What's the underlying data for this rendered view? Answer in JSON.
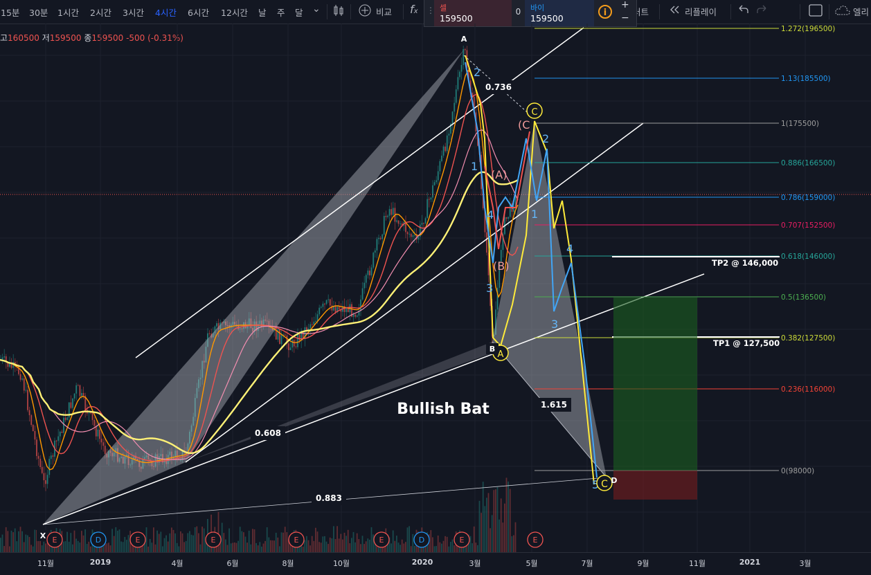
{
  "toolbar": {
    "timeframes": [
      {
        "label": "15분",
        "active": false
      },
      {
        "label": "30분",
        "active": false
      },
      {
        "label": "1시간",
        "active": false
      },
      {
        "label": "2시간",
        "active": false
      },
      {
        "label": "3시간",
        "active": false
      },
      {
        "label": "4시간",
        "active": true
      },
      {
        "label": "6시간",
        "active": false
      },
      {
        "label": "12시간",
        "active": false
      },
      {
        "label": "날",
        "active": false
      },
      {
        "label": "주",
        "active": false
      },
      {
        "label": "달",
        "active": false
      }
    ],
    "compare_label": "비교",
    "chart_label": "러트",
    "replay_label": "리플레이",
    "alert_label": "엘리"
  },
  "trade": {
    "sell_label": "셀",
    "sell_value": "159500",
    "spread": "0",
    "buy_label": "바이",
    "buy_value": "159500"
  },
  "ohlc": {
    "high_label": "고",
    "high": "160500",
    "low_label": "저",
    "low": "159500",
    "close_label": "종",
    "close": "159500",
    "change": "-500 (-0.31%)"
  },
  "chart": {
    "pattern_title": "Bullish Bat",
    "ratio_labels": {
      "r1": "0.736",
      "r2": "0.608",
      "r3": "0.883",
      "r4": "1.615"
    },
    "points": {
      "X": "X",
      "A": "A",
      "B": "B",
      "C": "C",
      "D": "D"
    },
    "tp2": "TP2 @ 146,000",
    "tp1": "TP1 @ 127,500",
    "wave_labels": {
      "w1": "1",
      "w2": "2",
      "w3": "3",
      "w4": "4",
      "w5": "5",
      "wA": "(A)",
      "wB": "(B)",
      "wC": "(C"
    },
    "circle_labels": {
      "a": "A",
      "c": "C",
      "c2": "C"
    },
    "fib_levels": [
      {
        "label": "1.272(196500)",
        "color": "#cddc39"
      },
      {
        "label": "1.13(185500)",
        "color": "#2196f3"
      },
      {
        "label": "1(175500)",
        "color": "#9e9e9e"
      },
      {
        "label": "0.886(166500)",
        "color": "#26a69a"
      },
      {
        "label": "0.786(159000)",
        "color": "#2196f3"
      },
      {
        "label": "0.707(152500)",
        "color": "#e91e63"
      },
      {
        "label": "0.618(146000)",
        "color": "#26a69a"
      },
      {
        "label": "0.5(136500)",
        "color": "#4caf50"
      },
      {
        "label": "0.382(127500)",
        "color": "#cddc39"
      },
      {
        "label": "0.236(116000)",
        "color": "#f44336"
      },
      {
        "label": "0(98000)",
        "color": "#9e9e9e"
      }
    ],
    "earnings_markers": [
      "E",
      "D",
      "E",
      "E",
      "E",
      "E",
      "D",
      "E",
      "E"
    ]
  },
  "time_axis": [
    "11월",
    "2019",
    "4월",
    "6월",
    "8월",
    "10월",
    "2020",
    "3월",
    "5월",
    "7월",
    "9월",
    "11월",
    "2021",
    "3월"
  ]
}
